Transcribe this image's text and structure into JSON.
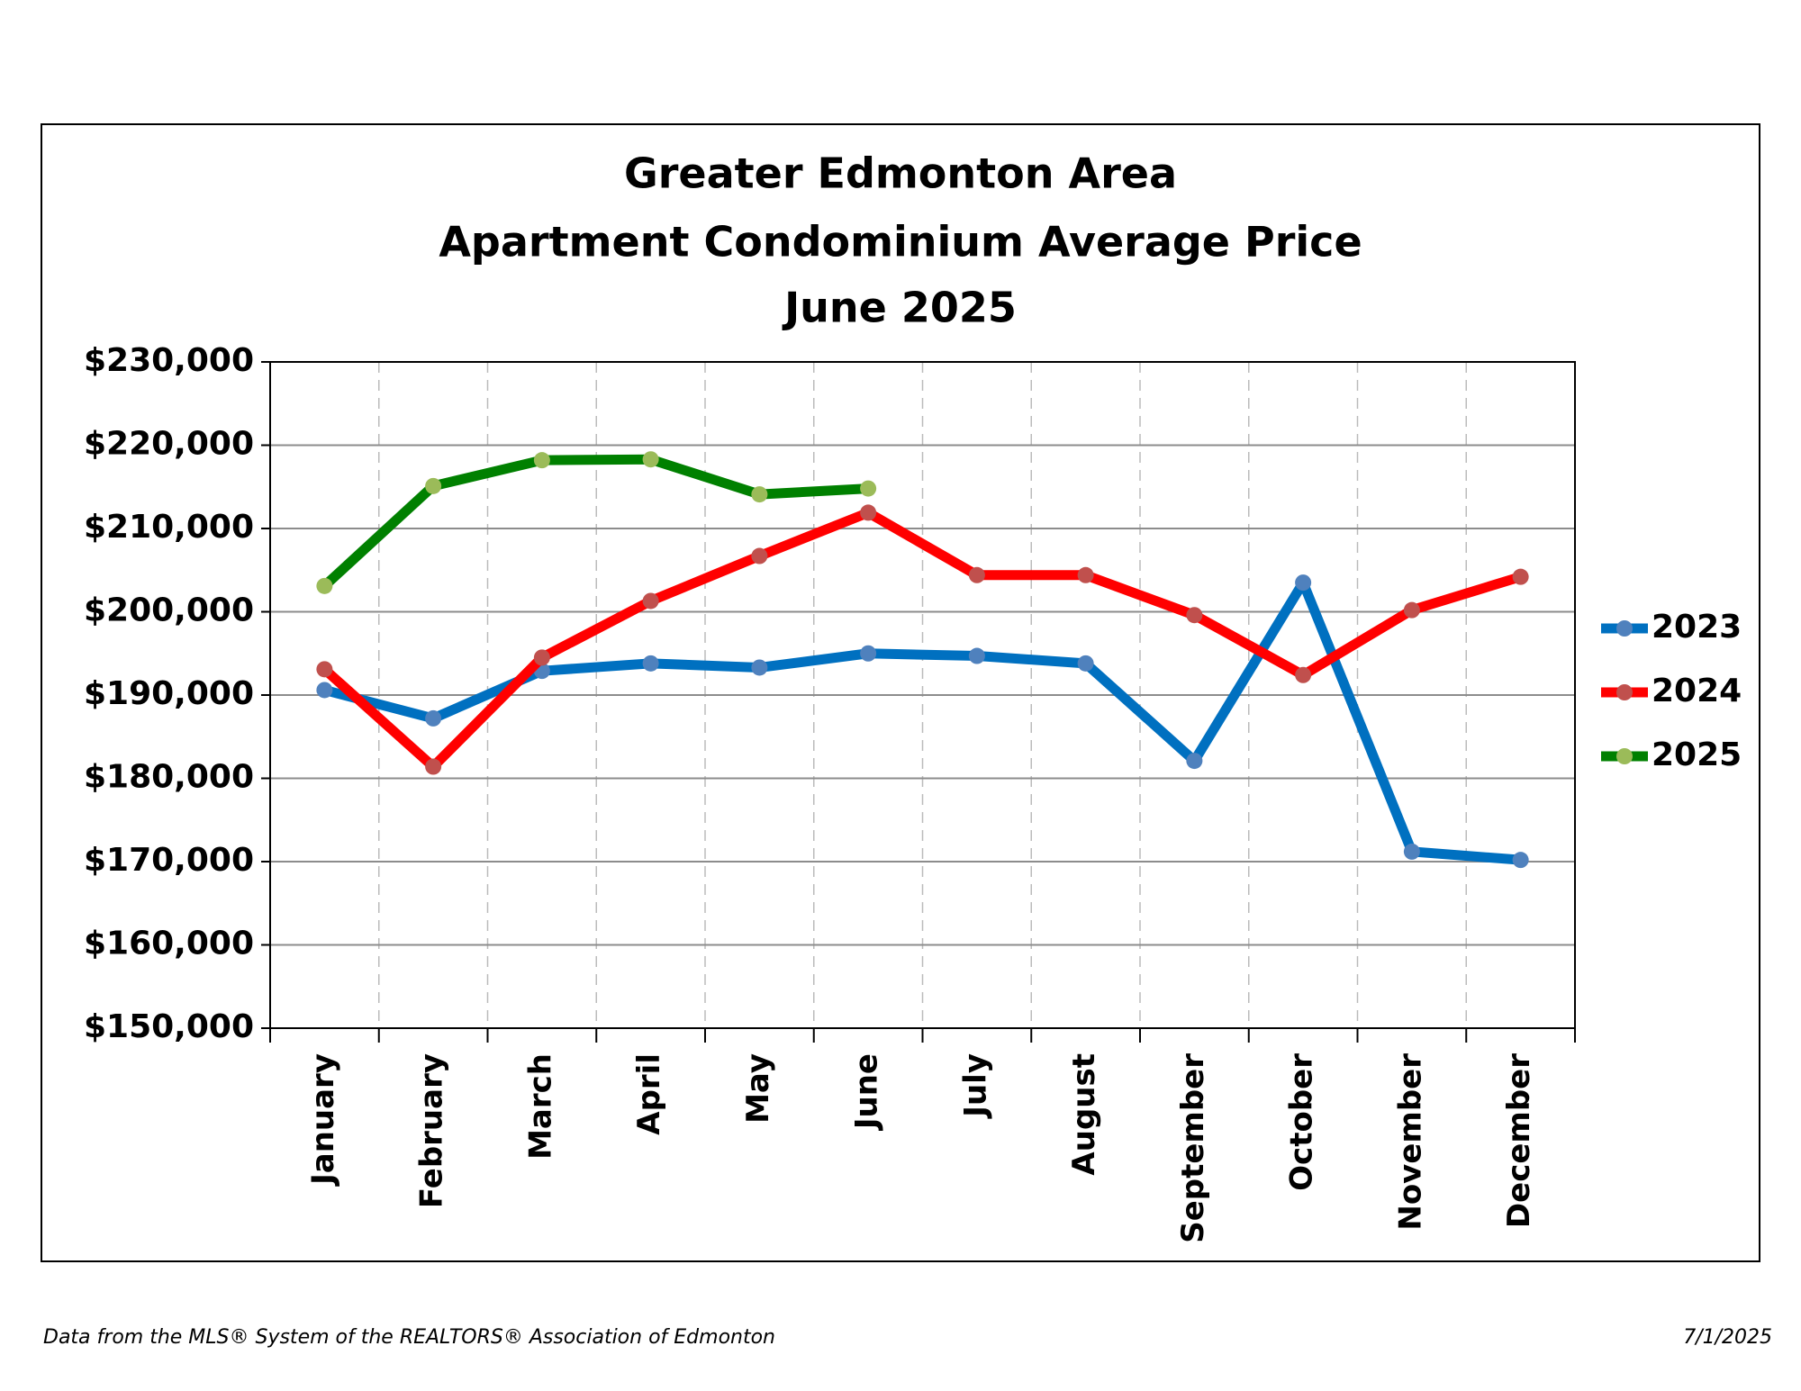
{
  "chart_data": {
    "type": "line",
    "title": [
      "Greater Edmonton Area",
      "Apartment Condominium Average Price",
      "June 2025"
    ],
    "categories": [
      "January",
      "February",
      "March",
      "April",
      "May",
      "June",
      "July",
      "August",
      "September",
      "October",
      "November",
      "December"
    ],
    "series": [
      {
        "name": "2023",
        "color": "#0070c0",
        "marker_color": "#4f81bd",
        "values": [
          190600,
          187200,
          192900,
          193800,
          193300,
          195000,
          194700,
          193800,
          182100,
          203500,
          171200,
          170200
        ]
      },
      {
        "name": "2024",
        "color": "#ff0000",
        "marker_color": "#c0504d",
        "values": [
          193100,
          181400,
          194500,
          201300,
          206700,
          211900,
          204400,
          204400,
          199600,
          192400,
          200200,
          204200
        ]
      },
      {
        "name": "2025",
        "color": "#008000",
        "marker_color": "#9bbb59",
        "values": [
          203100,
          215100,
          218200,
          218300,
          214100,
          214800,
          null,
          null,
          null,
          null,
          null,
          null
        ]
      }
    ],
    "ylim": [
      150000,
      230000
    ],
    "yticks": [
      {
        "value": 150000,
        "label": "$150,000"
      },
      {
        "value": 160000,
        "label": "$160,000"
      },
      {
        "value": 170000,
        "label": "$170,000"
      },
      {
        "value": 180000,
        "label": "$180,000"
      },
      {
        "value": 190000,
        "label": "$190,000"
      },
      {
        "value": 200000,
        "label": "$200,000"
      },
      {
        "value": 210000,
        "label": "$210,000"
      },
      {
        "value": 220000,
        "label": "$220,000"
      },
      {
        "value": 230000,
        "label": "$230,000"
      }
    ],
    "grid": true,
    "legend": "right",
    "footnote": "Data from the MLS® System of the REALTORS® Association of Edmonton",
    "date": "7/1/2025"
  }
}
